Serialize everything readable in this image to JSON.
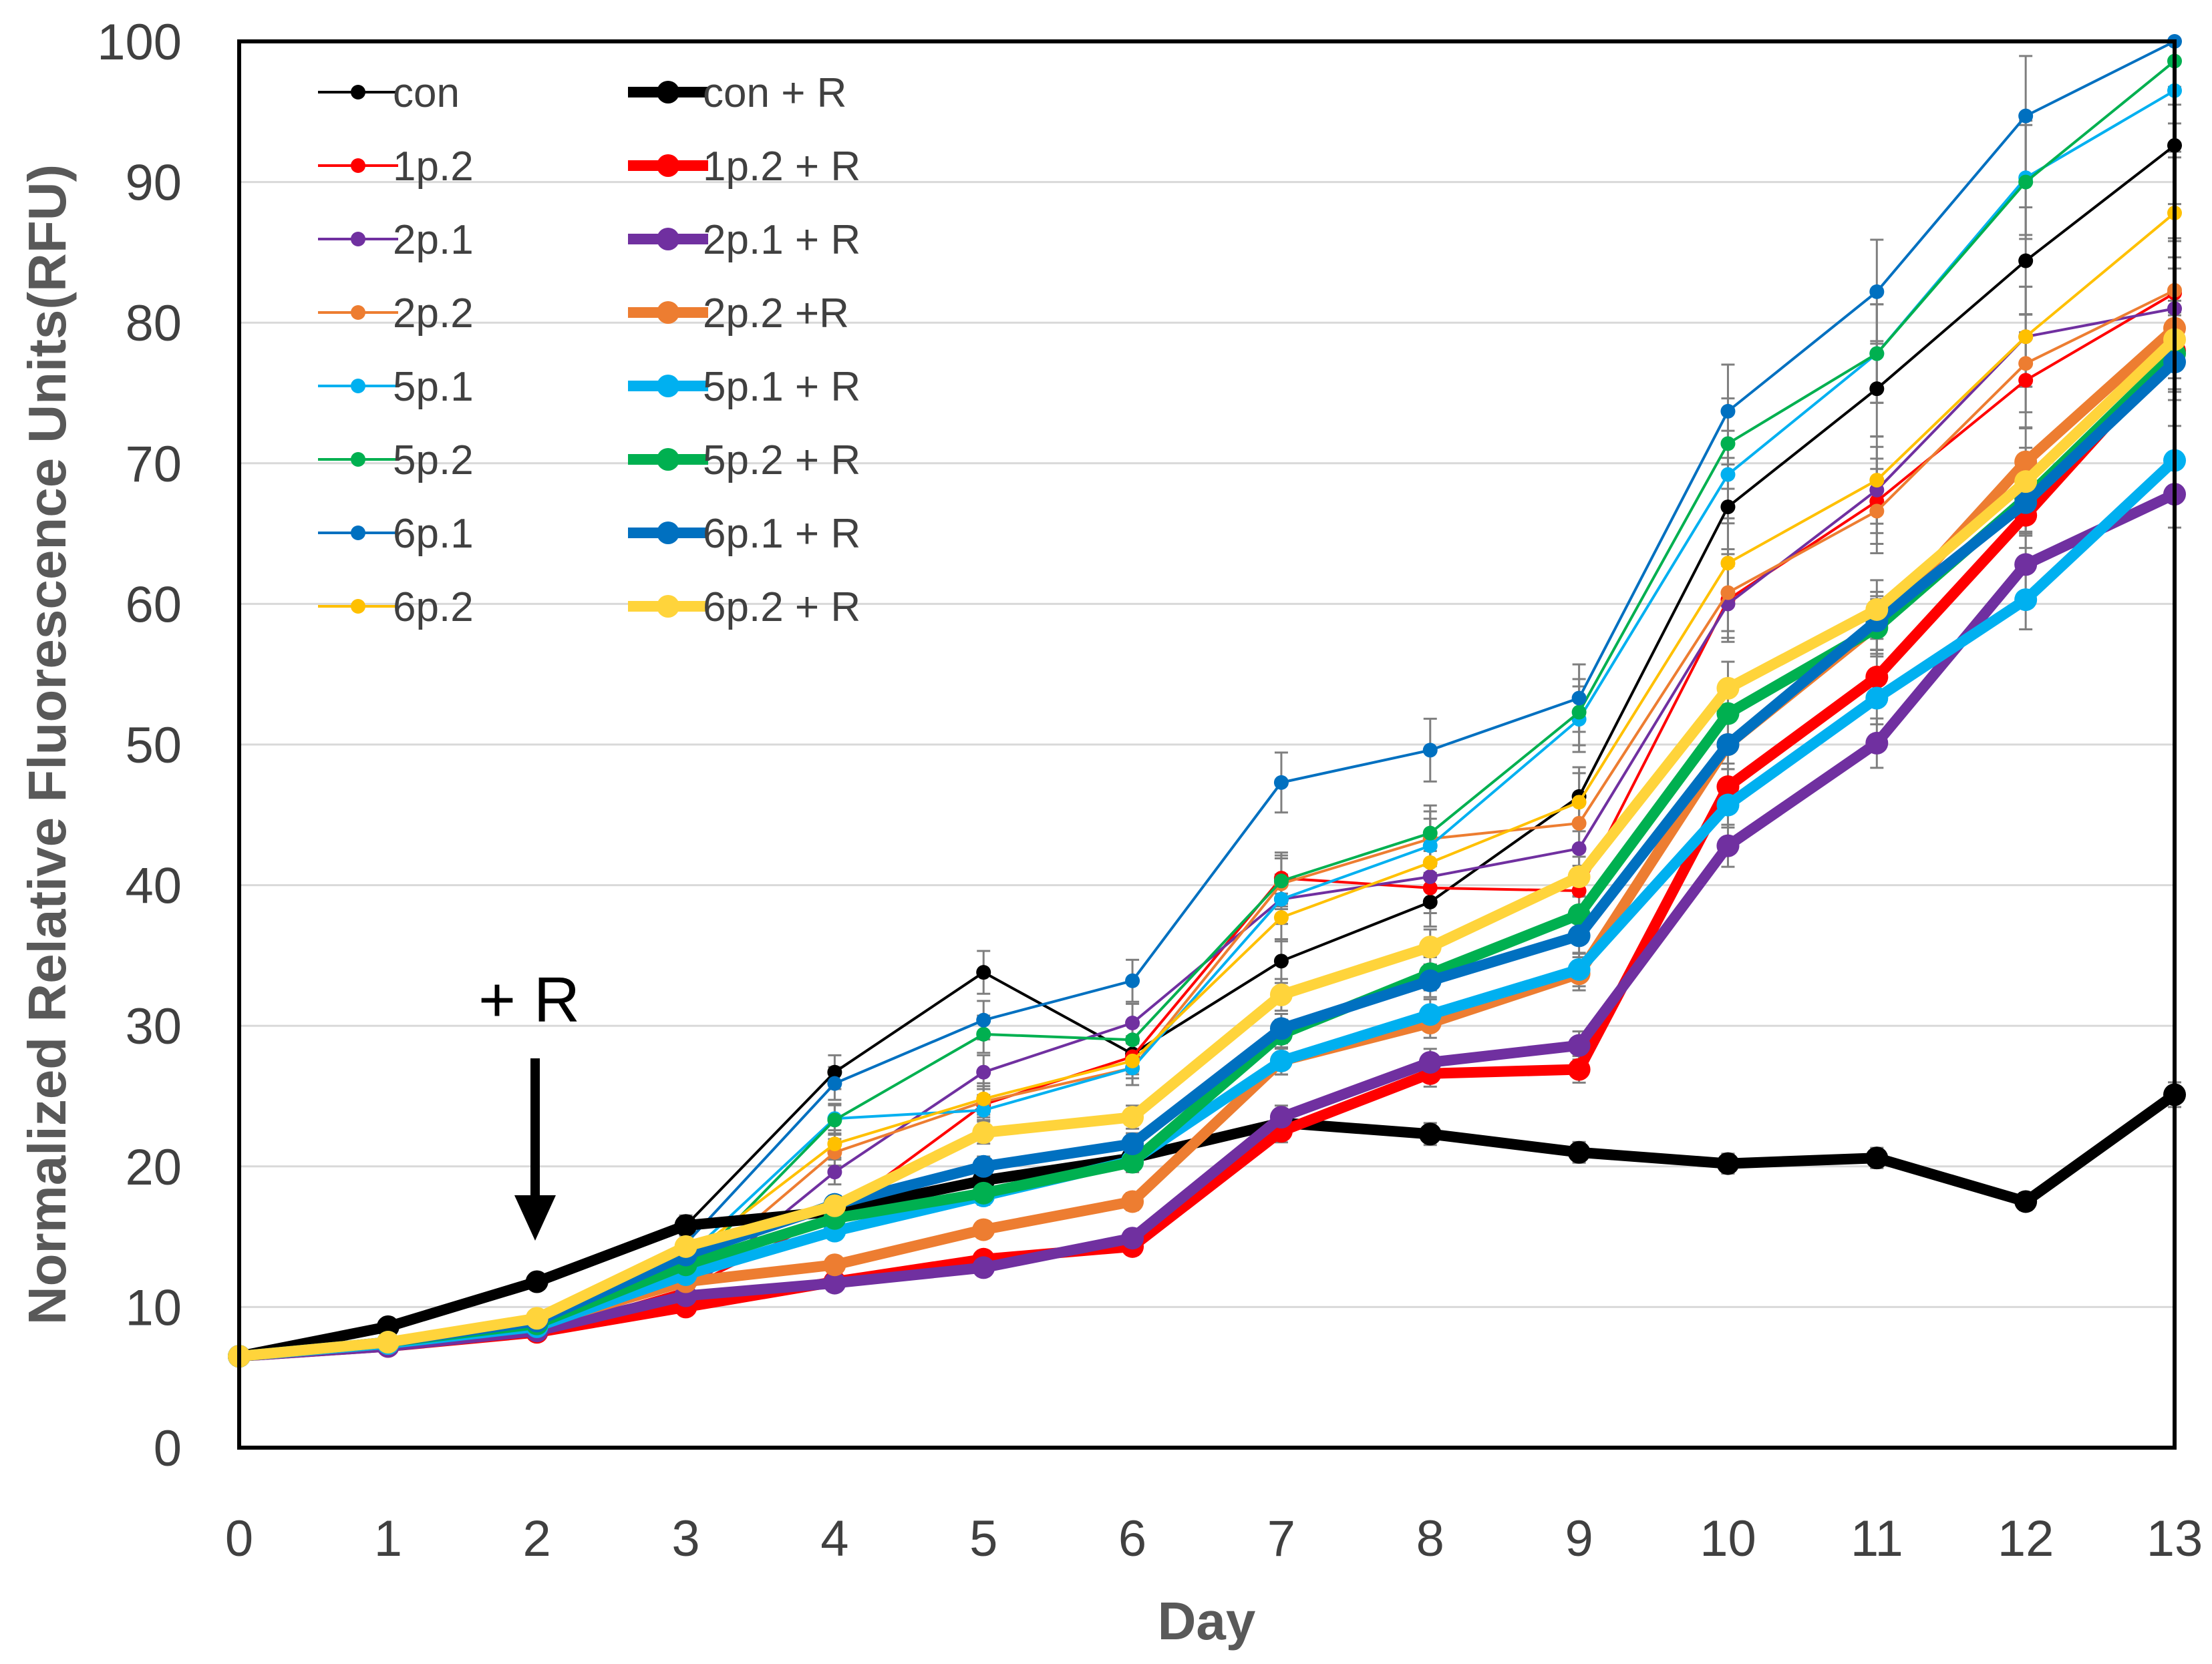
{
  "chart_data": {
    "type": "line",
    "title": "",
    "xlabel": "Day",
    "ylabel": "Normalized Relative Fluorescence Units(RFU)",
    "x": [
      0,
      1,
      2,
      3,
      4,
      5,
      6,
      7,
      8,
      9,
      10,
      11,
      12,
      13
    ],
    "xlim": [
      0,
      13
    ],
    "ylim": [
      0,
      100
    ],
    "yticks": [
      0,
      10,
      20,
      30,
      40,
      50,
      60,
      70,
      80,
      90,
      100
    ],
    "grid": "horizontal",
    "legend_position": "top-left",
    "annotation": {
      "text": "+ R",
      "x": 2,
      "points_to_y": 15
    },
    "series": [
      {
        "name": "con",
        "color": "#000000",
        "style": "thin",
        "values": [
          6.5,
          8.6,
          11.8,
          15.8,
          26.7,
          33.8,
          28.0,
          34.6,
          38.8,
          46.3,
          66.9,
          75.3,
          84.4,
          92.6
        ]
      },
      {
        "name": "1p.2",
        "color": "#ff0000",
        "style": "thin",
        "values": [
          6.5,
          7.3,
          8.2,
          11.3,
          16.6,
          24.4,
          27.8,
          40.5,
          39.8,
          39.6,
          60.3,
          67.3,
          75.9,
          82.1
        ]
      },
      {
        "name": "2p.1",
        "color": "#7030a0",
        "style": "thin",
        "values": [
          6.5,
          7.3,
          8.2,
          11.0,
          19.6,
          26.7,
          30.2,
          39.0,
          40.6,
          42.6,
          60.0,
          68.1,
          79.0,
          81.0
        ]
      },
      {
        "name": "2p.2",
        "color": "#ed7d31",
        "style": "thin",
        "values": [
          6.5,
          7.3,
          8.4,
          12.0,
          21.0,
          24.6,
          27.0,
          40.1,
          43.3,
          44.4,
          60.8,
          66.6,
          77.1,
          82.3
        ]
      },
      {
        "name": "5p.1",
        "color": "#00b0f0",
        "style": "thin",
        "values": [
          6.5,
          7.4,
          8.7,
          13.5,
          23.4,
          24.0,
          27.0,
          39.0,
          42.8,
          51.8,
          69.2,
          77.8,
          90.3,
          96.5
        ]
      },
      {
        "name": "5p.2",
        "color": "#00b050",
        "style": "thin",
        "values": [
          6.5,
          7.6,
          9.0,
          12.5,
          23.3,
          29.4,
          29.0,
          40.3,
          43.7,
          52.3,
          71.4,
          77.8,
          90.0,
          98.6
        ]
      },
      {
        "name": "6p.1",
        "color": "#0070c0",
        "style": "thin",
        "values": [
          6.5,
          7.5,
          8.9,
          14.5,
          25.9,
          30.4,
          33.2,
          47.3,
          49.6,
          53.3,
          73.7,
          82.2,
          94.7,
          100.0
        ]
      },
      {
        "name": "6p.2",
        "color": "#ffc000",
        "style": "thin",
        "values": [
          6.5,
          7.5,
          9.0,
          13.5,
          21.6,
          24.8,
          27.5,
          37.7,
          41.6,
          45.9,
          62.9,
          68.8,
          79.0,
          87.8
        ]
      },
      {
        "name": "con + R",
        "color": "#000000",
        "style": "thick",
        "values": [
          6.5,
          8.6,
          11.8,
          15.8,
          16.8,
          19.0,
          20.6,
          23.1,
          22.3,
          21.0,
          20.2,
          20.6,
          17.5,
          25.1
        ]
      },
      {
        "name": "1p.2 + R",
        "color": "#ff0000",
        "style": "thick",
        "values": [
          6.5,
          7.2,
          8.2,
          10.0,
          11.8,
          13.4,
          14.3,
          22.5,
          26.6,
          26.9,
          47.0,
          54.8,
          66.3,
          78.0
        ]
      },
      {
        "name": "2p.1 + R",
        "color": "#7030a0",
        "style": "thick",
        "values": [
          6.5,
          7.2,
          8.3,
          10.8,
          11.7,
          12.8,
          14.9,
          23.5,
          27.4,
          28.6,
          42.8,
          50.1,
          62.8,
          67.8
        ]
      },
      {
        "name": "2p.2 +R",
        "color": "#ed7d31",
        "style": "thick",
        "values": [
          6.5,
          7.4,
          8.8,
          11.8,
          13.0,
          15.5,
          17.5,
          27.5,
          30.2,
          33.7,
          50.0,
          58.5,
          70.1,
          79.6
        ]
      },
      {
        "name": "5p.1 + R",
        "color": "#00b0f0",
        "style": "thick",
        "values": [
          6.5,
          7.4,
          8.6,
          12.3,
          15.4,
          17.9,
          20.4,
          27.5,
          30.8,
          34.0,
          45.7,
          53.3,
          60.3,
          70.2
        ]
      },
      {
        "name": "5p.2 + R",
        "color": "#00b050",
        "style": "thick",
        "values": [
          6.5,
          7.5,
          8.8,
          13.0,
          16.3,
          18.1,
          20.3,
          29.4,
          33.7,
          37.9,
          52.2,
          58.3,
          67.5,
          77.8
        ]
      },
      {
        "name": "6p.1 + R",
        "color": "#0070c0",
        "style": "thick",
        "values": [
          6.5,
          7.5,
          9.0,
          13.7,
          17.3,
          20.0,
          21.6,
          29.8,
          33.2,
          36.4,
          50.0,
          58.8,
          67.2,
          77.2
        ]
      },
      {
        "name": "6p.2 + R",
        "color": "#ffd43b",
        "style": "thick",
        "values": [
          6.5,
          7.5,
          9.2,
          14.3,
          17.2,
          22.4,
          23.5,
          32.2,
          35.6,
          40.6,
          54.0,
          59.6,
          68.7,
          78.8
        ]
      }
    ]
  }
}
